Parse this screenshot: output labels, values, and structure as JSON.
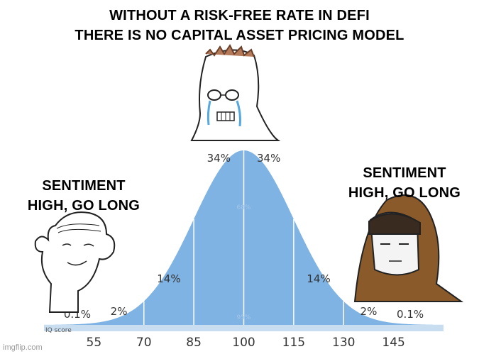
{
  "title_lines": [
    "WITHOUT A RISK-FREE RATE IN DEFI",
    "THERE IS NO CAPITAL ASSET PRICING MODEL"
  ],
  "caption_left_lines": [
    "SENTIMENT",
    "HIGH, GO LONG"
  ],
  "caption_right_lines": [
    "SENTIMENT",
    "HIGH, GO LONG"
  ],
  "watermark": "imgflip.com",
  "chart_data": {
    "type": "area",
    "xlabel": "IQ score",
    "x_ticks": [
      55,
      70,
      85,
      100,
      115,
      130,
      145
    ],
    "x_tick_labels": [
      "55",
      "70",
      "85",
      "100",
      "115",
      "130",
      "145"
    ],
    "band_labels": [
      {
        "x": 50,
        "label": "0.1%"
      },
      {
        "x": 62.5,
        "label": "2%"
      },
      {
        "x": 77.5,
        "label": "14%"
      },
      {
        "x": 92.5,
        "label": "34%"
      },
      {
        "x": 107.5,
        "label": "34%"
      },
      {
        "x": 122.5,
        "label": "14%"
      },
      {
        "x": 137.5,
        "label": "2%"
      },
      {
        "x": 150,
        "label": "0.1%"
      }
    ],
    "inner_labels": [
      "68%",
      "95%"
    ],
    "mean": 100,
    "sd": 15,
    "colors": {
      "fill": "#7fb3e3",
      "baseline": "#c9ddf0",
      "divider": "#ffffff",
      "text": "#333333"
    }
  }
}
